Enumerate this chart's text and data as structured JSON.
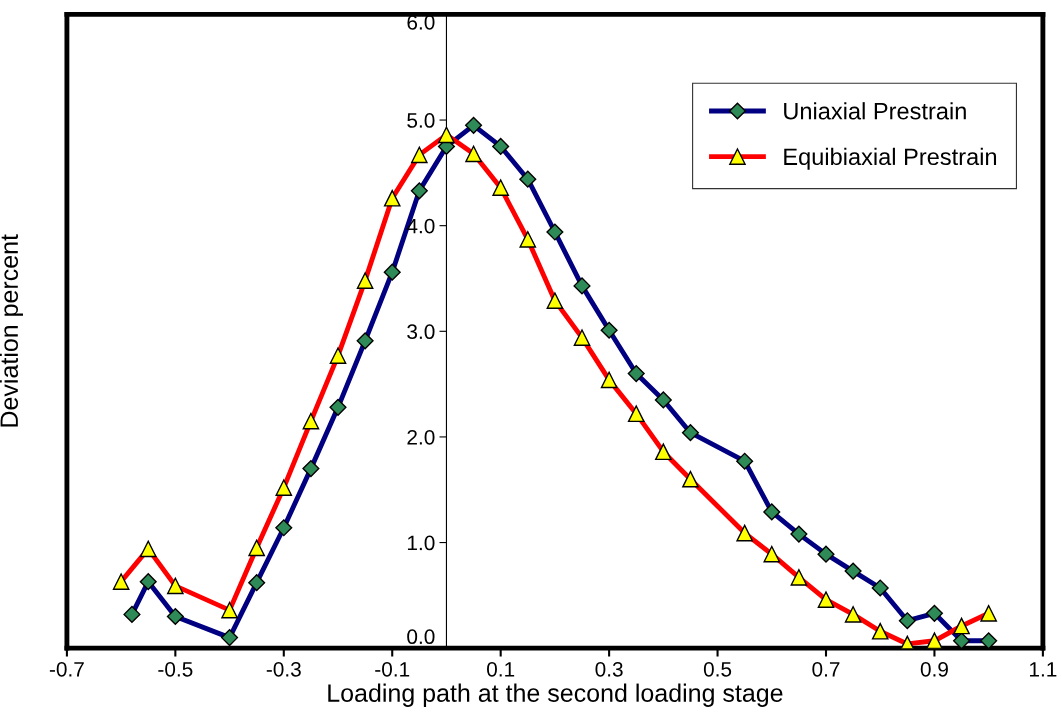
{
  "chart_data": {
    "type": "line",
    "xlabel": "Loading path at the second loading stage",
    "ylabel": "Deviation percent",
    "xlim": [
      -0.7,
      1.1
    ],
    "xticks": [
      -0.7,
      -0.5,
      -0.3,
      -0.1,
      0.1,
      0.3,
      0.5,
      0.7,
      0.9,
      1.1
    ],
    "ylim": [
      0,
      6
    ],
    "yticks": [
      {
        "value": 0,
        "label": "0.0"
      },
      {
        "value": 1,
        "label": "1.0"
      },
      {
        "value": 2,
        "label": "2.0"
      },
      {
        "value": 3,
        "label": "3.0"
      },
      {
        "value": 4,
        "label": "4.0"
      },
      {
        "value": 5,
        "label": "5.0"
      },
      {
        "value": 6,
        "label": "6.0"
      }
    ],
    "grid": false,
    "legend": "top right",
    "line_style": "solid",
    "series": [
      {
        "name": "Uniaxial Prestrain",
        "color": "#000080",
        "marker": "diamond",
        "x": [
          -0.58,
          -0.55,
          -0.5,
          -0.4,
          -0.35,
          -0.3,
          -0.25,
          -0.2,
          -0.15,
          -0.1,
          -0.05,
          0,
          0.05,
          0.1,
          0.15,
          0.2,
          0.25,
          0.3,
          0.35,
          0.4,
          0.45,
          0.55,
          0.6,
          0.65,
          0.7,
          0.75,
          0.8,
          0.85,
          0.9,
          0.95,
          1.0
        ],
        "values": [
          0.32,
          0.63,
          0.3,
          0.1,
          0.62,
          1.14,
          1.7,
          2.28,
          2.91,
          3.56,
          4.33,
          4.75,
          4.95,
          4.75,
          4.44,
          3.94,
          3.43,
          3.01,
          2.6,
          2.35,
          2.04,
          1.77,
          1.29,
          1.08,
          0.89,
          0.73,
          0.57,
          0.26,
          0.33,
          0.07,
          0.07
        ]
      },
      {
        "name": "Equibiaxial Prestrain",
        "color": "#ff0000",
        "marker": "triangle",
        "x": [
          -0.6,
          -0.55,
          -0.5,
          -0.4,
          -0.35,
          -0.3,
          -0.25,
          -0.2,
          -0.15,
          -0.1,
          -0.05,
          0,
          0.05,
          0.1,
          0.15,
          0.2,
          0.25,
          0.3,
          0.35,
          0.4,
          0.45,
          0.55,
          0.6,
          0.65,
          0.7,
          0.75,
          0.8,
          0.85,
          0.9,
          0.95,
          1.0
        ],
        "values": [
          0.63,
          0.94,
          0.59,
          0.36,
          0.95,
          1.52,
          2.15,
          2.77,
          3.48,
          4.26,
          4.67,
          4.86,
          4.68,
          4.36,
          3.87,
          3.29,
          2.94,
          2.54,
          2.22,
          1.86,
          1.6,
          1.09,
          0.89,
          0.67,
          0.46,
          0.32,
          0.16,
          0.04,
          0.07,
          0.21,
          0.33
        ]
      }
    ]
  }
}
